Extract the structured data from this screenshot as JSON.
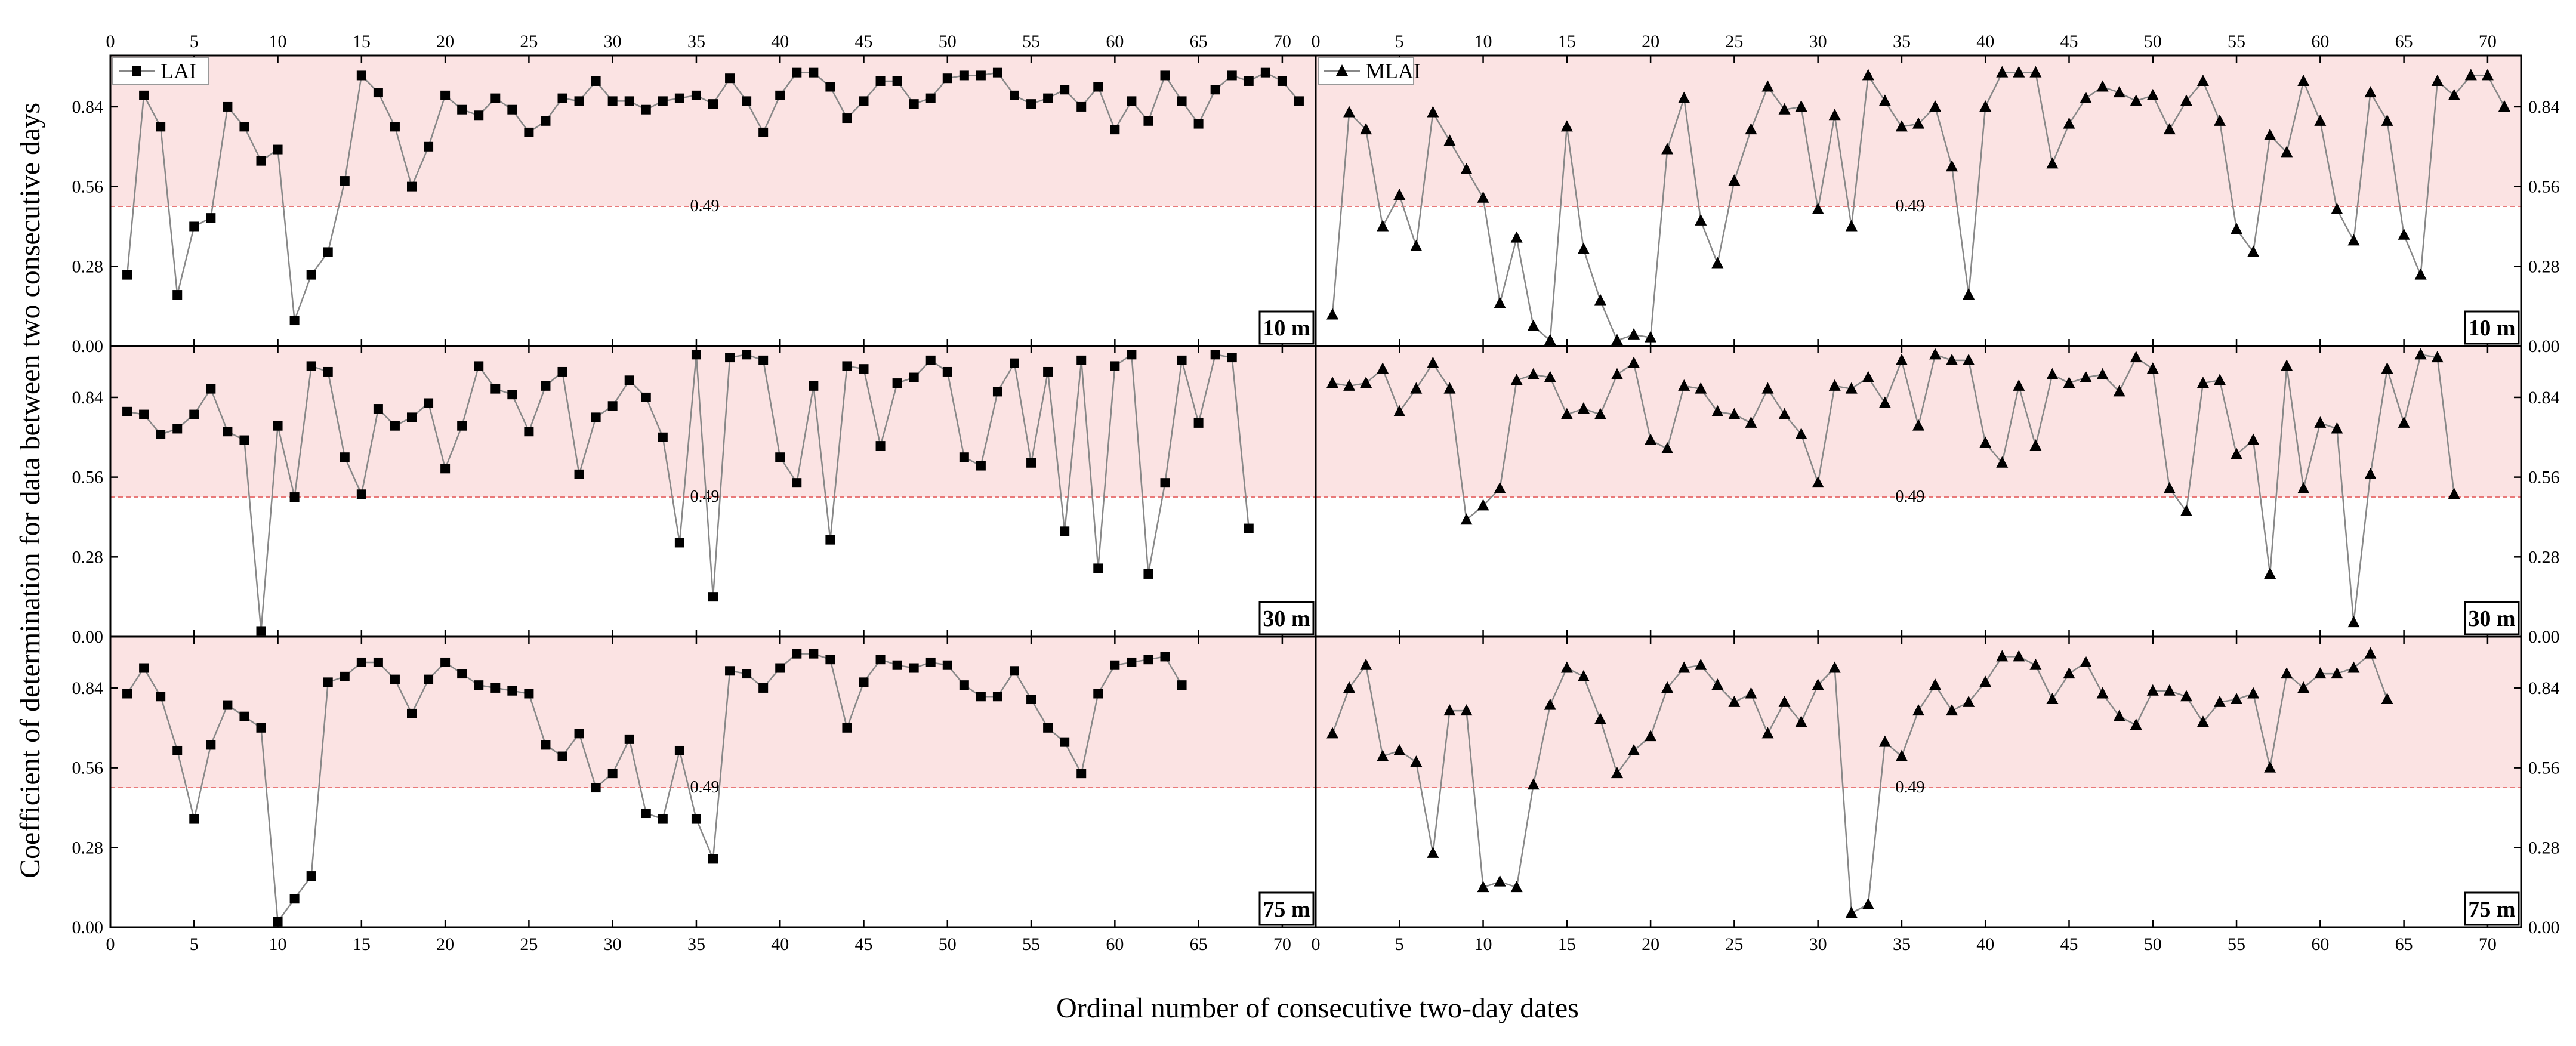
{
  "chart_data": {
    "type": "line",
    "ylabel": "Coefficient of determination for data between two consecutive days",
    "xlabel": "Ordinal number of consecutive two-day dates",
    "xlim": [
      0,
      72
    ],
    "ylim": [
      0,
      1.02
    ],
    "xticks": [
      "0",
      "5",
      "10",
      "15",
      "20",
      "25",
      "30",
      "35",
      "40",
      "45",
      "50",
      "55",
      "60",
      "65",
      "70"
    ],
    "yticks": [
      "0.00",
      "0.28",
      "0.56",
      "0.84"
    ],
    "threshold": {
      "value": 0.49,
      "label": "0.49",
      "band": [
        0.49,
        1.02
      ],
      "band_color": "#fbe3e3",
      "line_color": "#e87979"
    },
    "line_color": "#888888",
    "marker_color": "#000000",
    "legend": {
      "placement": "top-left"
    },
    "panels": [
      {
        "series": "LAI",
        "marker": "square",
        "resolution": "10 m",
        "show_legend": true,
        "values": [
          0.25,
          0.88,
          0.77,
          0.18,
          0.42,
          0.45,
          0.84,
          0.77,
          0.65,
          0.69,
          0.09,
          0.25,
          0.33,
          0.58,
          0.95,
          0.89,
          0.77,
          0.56,
          0.7,
          0.88,
          0.83,
          0.81,
          0.87,
          0.83,
          0.75,
          0.79,
          0.87,
          0.86,
          0.93,
          0.86,
          0.86,
          0.83,
          0.86,
          0.87,
          0.88,
          0.85,
          0.94,
          0.86,
          0.75,
          0.88,
          0.96,
          0.96,
          0.91,
          0.8,
          0.86,
          0.93,
          0.93,
          0.85,
          0.87,
          0.94,
          0.95,
          0.95,
          0.96,
          0.88,
          0.85,
          0.87,
          0.9,
          0.84,
          0.91,
          0.76,
          0.86,
          0.79,
          0.95,
          0.86,
          0.78,
          0.9,
          0.95,
          0.93,
          0.96,
          0.93,
          0.86
        ]
      },
      {
        "series": "MLAI",
        "marker": "triangle",
        "resolution": "10 m",
        "show_legend": true,
        "values": [
          0.11,
          0.82,
          0.76,
          0.42,
          0.53,
          0.35,
          0.82,
          0.72,
          0.62,
          0.52,
          0.15,
          0.38,
          0.07,
          0.02,
          0.77,
          0.34,
          0.16,
          0.02,
          0.04,
          0.03,
          0.69,
          0.87,
          0.44,
          0.29,
          0.58,
          0.76,
          0.91,
          0.83,
          0.84,
          0.48,
          0.81,
          0.42,
          0.95,
          0.86,
          0.77,
          0.78,
          0.84,
          0.63,
          0.18,
          0.84,
          0.96,
          0.96,
          0.96,
          0.64,
          0.78,
          0.87,
          0.91,
          0.89,
          0.86,
          0.88,
          0.76,
          0.86,
          0.93,
          0.79,
          0.41,
          0.33,
          0.74,
          0.68,
          0.93,
          0.79,
          0.48,
          0.37,
          0.89,
          0.79,
          0.39,
          0.25,
          0.93,
          0.88,
          0.95,
          0.95,
          0.84
        ]
      },
      {
        "series": "LAI",
        "marker": "square",
        "resolution": "30 m",
        "show_legend": false,
        "values": [
          0.79,
          0.78,
          0.71,
          0.73,
          0.78,
          0.87,
          0.72,
          0.69,
          0.02,
          0.74,
          0.49,
          0.95,
          0.93,
          0.63,
          0.5,
          0.8,
          0.74,
          0.77,
          0.82,
          0.59,
          0.74,
          0.95,
          0.87,
          0.85,
          0.72,
          0.88,
          0.93,
          0.57,
          0.77,
          0.81,
          0.9,
          0.84,
          0.7,
          0.33,
          0.99,
          0.14,
          0.98,
          0.99,
          0.97,
          0.63,
          0.54,
          0.88,
          0.34,
          0.95,
          0.94,
          0.67,
          0.89,
          0.91,
          0.97,
          0.93,
          0.63,
          0.6,
          0.86,
          0.96,
          0.61,
          0.93,
          0.37,
          0.97,
          0.24,
          0.95,
          0.99,
          0.22,
          0.54,
          0.97,
          0.75,
          0.99,
          0.98,
          0.38
        ]
      },
      {
        "series": "MLAI",
        "marker": "triangle",
        "resolution": "30 m",
        "show_legend": false,
        "values": [
          0.89,
          0.88,
          0.89,
          0.94,
          0.79,
          0.87,
          0.96,
          0.87,
          0.41,
          0.46,
          0.52,
          0.9,
          0.92,
          0.91,
          0.78,
          0.8,
          0.78,
          0.92,
          0.96,
          0.69,
          0.66,
          0.88,
          0.87,
          0.79,
          0.78,
          0.75,
          0.87,
          0.78,
          0.71,
          0.54,
          0.88,
          0.87,
          0.91,
          0.82,
          0.97,
          0.74,
          0.99,
          0.97,
          0.97,
          0.68,
          0.61,
          0.88,
          0.67,
          0.92,
          0.89,
          0.91,
          0.92,
          0.86,
          0.98,
          0.94,
          0.52,
          0.44,
          0.89,
          0.9,
          0.64,
          0.69,
          0.22,
          0.95,
          0.52,
          0.75,
          0.73,
          0.05,
          0.57,
          0.94,
          0.75,
          0.99,
          0.98,
          0.5
        ]
      },
      {
        "series": "LAI",
        "marker": "square",
        "resolution": "75 m",
        "show_legend": false,
        "values": [
          0.82,
          0.91,
          0.81,
          0.62,
          0.38,
          0.64,
          0.78,
          0.74,
          0.7,
          0.02,
          0.1,
          0.18,
          0.86,
          0.88,
          0.93,
          0.93,
          0.87,
          0.75,
          0.87,
          0.93,
          0.89,
          0.85,
          0.84,
          0.83,
          0.82,
          0.64,
          0.6,
          0.68,
          0.49,
          0.54,
          0.66,
          0.4,
          0.38,
          0.62,
          0.38,
          0.24,
          0.9,
          0.89,
          0.84,
          0.91,
          0.96,
          0.96,
          0.94,
          0.7,
          0.86,
          0.94,
          0.92,
          0.91,
          0.93,
          0.92,
          0.85,
          0.81,
          0.81,
          0.9,
          0.8,
          0.7,
          0.65,
          0.54,
          0.82,
          0.92,
          0.93,
          0.94,
          0.95,
          0.85
        ]
      },
      {
        "series": "MLAI",
        "marker": "triangle",
        "resolution": "75 m",
        "show_legend": false,
        "values": [
          0.68,
          0.84,
          0.92,
          0.6,
          0.62,
          0.58,
          0.26,
          0.76,
          0.76,
          0.14,
          0.16,
          0.14,
          0.5,
          0.78,
          0.91,
          0.88,
          0.73,
          0.54,
          0.62,
          0.67,
          0.84,
          0.91,
          0.92,
          0.85,
          0.79,
          0.82,
          0.68,
          0.79,
          0.72,
          0.85,
          0.91,
          0.05,
          0.08,
          0.65,
          0.6,
          0.76,
          0.85,
          0.76,
          0.79,
          0.86,
          0.95,
          0.95,
          0.92,
          0.8,
          0.89,
          0.93,
          0.82,
          0.74,
          0.71,
          0.83,
          0.83,
          0.81,
          0.72,
          0.79,
          0.8,
          0.82,
          0.56,
          0.89,
          0.84,
          0.89,
          0.89,
          0.91,
          0.96,
          0.8
        ]
      }
    ]
  }
}
